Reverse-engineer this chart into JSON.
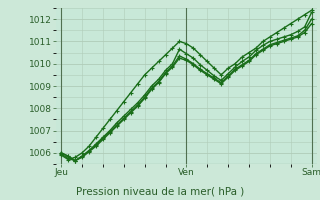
{
  "title": "",
  "xlabel": "Pression niveau de la mer( hPa )",
  "bg_color": "#cce8d8",
  "plot_bg_color": "#c8e8d8",
  "grid_color": "#b0ccb8",
  "line_color": "#1a6e1a",
  "marker_color": "#1a6e1a",
  "x_ticks": [
    0,
    24,
    48
  ],
  "x_tick_labels": [
    "Jeu",
    "Ven",
    "Sam"
  ],
  "ylim": [
    1005.5,
    1012.5
  ],
  "xlim": [
    -1,
    49
  ],
  "yticks": [
    1006,
    1007,
    1008,
    1009,
    1010,
    1011,
    1012
  ],
  "series": [
    [
      1005.9,
      1005.7,
      1005.8,
      1006.0,
      1006.3,
      1006.7,
      1007.1,
      1007.5,
      1007.9,
      1008.3,
      1008.7,
      1009.1,
      1009.5,
      1009.8,
      1010.1,
      1010.4,
      1010.7,
      1011.0,
      1010.9,
      1010.7,
      1010.4,
      1010.1,
      1009.8,
      1009.5,
      1009.8,
      1010.0,
      1010.3,
      1010.5,
      1010.7,
      1011.0,
      1011.2,
      1011.4,
      1011.6,
      1011.8,
      1012.0,
      1012.2,
      1012.4
    ],
    [
      1005.95,
      1005.75,
      1005.65,
      1005.85,
      1006.1,
      1006.4,
      1006.7,
      1007.0,
      1007.35,
      1007.65,
      1007.95,
      1008.25,
      1008.6,
      1009.0,
      1009.3,
      1009.7,
      1010.0,
      1010.65,
      1010.45,
      1010.25,
      1009.95,
      1009.7,
      1009.45,
      1009.25,
      1009.55,
      1009.85,
      1010.1,
      1010.3,
      1010.6,
      1010.82,
      1011.0,
      1011.1,
      1011.2,
      1011.3,
      1011.45,
      1011.65,
      1012.3
    ],
    [
      1006.0,
      1005.85,
      1005.65,
      1005.85,
      1006.1,
      1006.35,
      1006.65,
      1006.95,
      1007.25,
      1007.55,
      1007.85,
      1008.15,
      1008.5,
      1008.9,
      1009.2,
      1009.6,
      1009.9,
      1010.35,
      1010.2,
      1010.0,
      1009.75,
      1009.55,
      1009.35,
      1009.15,
      1009.45,
      1009.75,
      1009.95,
      1010.15,
      1010.45,
      1010.65,
      1010.85,
      1010.95,
      1011.05,
      1011.15,
      1011.25,
      1011.5,
      1012.0
    ],
    [
      1006.0,
      1005.85,
      1005.65,
      1005.8,
      1006.05,
      1006.3,
      1006.6,
      1006.9,
      1007.2,
      1007.5,
      1007.8,
      1008.1,
      1008.45,
      1008.85,
      1009.15,
      1009.55,
      1009.85,
      1010.25,
      1010.15,
      1009.95,
      1009.7,
      1009.5,
      1009.3,
      1009.1,
      1009.4,
      1009.7,
      1009.9,
      1010.1,
      1010.4,
      1010.6,
      1010.8,
      1010.9,
      1011.0,
      1011.1,
      1011.2,
      1011.4,
      1011.8
    ]
  ]
}
